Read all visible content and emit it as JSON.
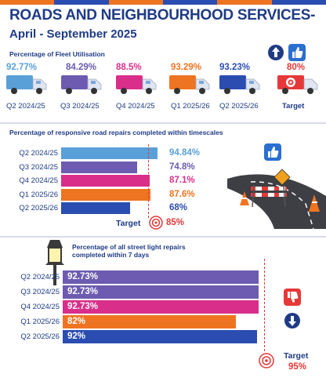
{
  "title": "ROADS AND NEIGHBOURHOOD SERVICES-",
  "subtitle": "April - September 2025",
  "colors": {
    "navy": "#1f3b86",
    "purple": "#6c5bb0",
    "magenta": "#d92e8a",
    "orange": "#ef7422",
    "blue": "#2b4db1",
    "red": "#e63838",
    "lightblue": "#5aa0d8"
  },
  "fleet": {
    "heading": "Percentage of Fleet Utilisation",
    "items": [
      {
        "value": "92.77%",
        "label": "Q2 2024/25",
        "color": "#5aa0d8"
      },
      {
        "value": "84.29%",
        "label": "Q3 2024/25",
        "color": "#6c5bb0"
      },
      {
        "value": "88.5%",
        "label": "Q4 2024/25",
        "color": "#d92e8a"
      },
      {
        "value": "93.29%",
        "label": "Q1 2025/26",
        "color": "#ef7422"
      },
      {
        "value": "93.23%",
        "label": "Q2 2025/26",
        "color": "#2b4db1"
      }
    ],
    "target_value": "80%",
    "target_label": "Target",
    "trend_icon": "up-arrow-icon",
    "rating_icon": "thumbs-up-icon"
  },
  "road_repairs": {
    "heading": "Percentage of responsive road repairs completed within timescales",
    "rows": [
      {
        "label": "Q2 2024/25",
        "value": "94.84%",
        "color": "#5aa0d8",
        "fraction": 0.9484
      },
      {
        "label": "Q3 2024/25",
        "value": "74.8%",
        "color": "#6c5bb0",
        "fraction": 0.748
      },
      {
        "label": "Q4 2024/25",
        "value": "87.1%",
        "color": "#d92e8a",
        "fraction": 0.871
      },
      {
        "label": "Q1 2025/26",
        "value": "87.6%",
        "color": "#ef7422",
        "fraction": 0.876
      },
      {
        "label": "Q2 2025/26",
        "value": "68%",
        "color": "#2b4db1",
        "fraction": 0.68
      }
    ],
    "target_label": "Target",
    "target_value": "85%",
    "target_fraction": 0.85,
    "rating_icon": "thumbs-up-icon"
  },
  "street_lights": {
    "heading_line1": "Percentage of all street light repairs",
    "heading_line2": "completed within 7 days",
    "rows": [
      {
        "label": "Q2 2024/25",
        "value": "92.73%",
        "color": "#6c5bb0",
        "fraction": 0.9273
      },
      {
        "label": "Q3 2024/25",
        "value": "92.73%",
        "color": "#6c5bb0",
        "fraction": 0.9273
      },
      {
        "label": "Q4 2024/25",
        "value": "92.73%",
        "color": "#d92e8a",
        "fraction": 0.9273
      },
      {
        "label": "Q1 2025/26",
        "value": "82%",
        "color": "#ef7422",
        "fraction": 0.82
      },
      {
        "label": "Q2 2025/26",
        "value": "92%",
        "color": "#2b4db1",
        "fraction": 0.92
      }
    ],
    "target_label": "Target",
    "target_value": "95%",
    "target_fraction": 0.95,
    "rating_icon": "thumbs-down-icon",
    "trend_icon": "down-arrow-icon"
  }
}
